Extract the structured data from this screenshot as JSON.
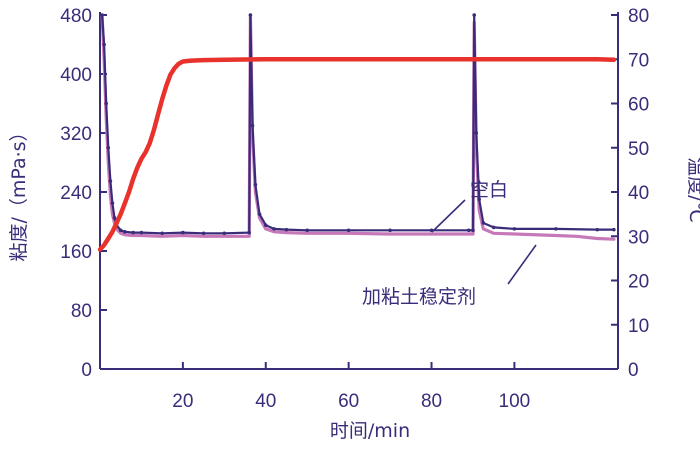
{
  "chart_data": {
    "type": "line",
    "xlabel": "时间/min",
    "ylabel_left": "粘度/（mPa·s）",
    "ylabel_right": "温度/℃",
    "x_ticks": [
      20,
      40,
      60,
      80,
      100
    ],
    "xlim": [
      0,
      125
    ],
    "left_ticks": [
      0,
      80,
      160,
      240,
      320,
      400,
      480
    ],
    "ylim_left": [
      0,
      480
    ],
    "right_ticks": [
      0,
      10,
      20,
      30,
      40,
      50,
      60,
      70,
      80
    ],
    "ylim_right": [
      0,
      80
    ],
    "colors": {
      "axis": "#3b2c7a",
      "temperature": "#e8322b",
      "blank": "#3b2c7a",
      "stabilizer": "#c678b8"
    },
    "series": [
      {
        "name": "空白",
        "axis": "left",
        "points": [
          [
            0.5,
            480
          ],
          [
            1,
            440
          ],
          [
            1.5,
            360
          ],
          [
            2,
            300
          ],
          [
            2.5,
            255
          ],
          [
            3,
            225
          ],
          [
            3.5,
            205
          ],
          [
            4,
            195
          ],
          [
            5,
            188
          ],
          [
            6,
            186
          ],
          [
            8,
            185
          ],
          [
            10,
            185
          ],
          [
            15,
            184
          ],
          [
            20,
            185
          ],
          [
            25,
            184
          ],
          [
            30,
            184
          ],
          [
            36,
            185
          ],
          [
            36.3,
            480
          ],
          [
            36.8,
            330
          ],
          [
            37.5,
            250
          ],
          [
            38.5,
            210
          ],
          [
            40,
            195
          ],
          [
            42,
            190
          ],
          [
            45,
            189
          ],
          [
            50,
            188
          ],
          [
            60,
            188
          ],
          [
            70,
            188
          ],
          [
            80,
            188
          ],
          [
            89,
            188
          ],
          [
            90,
            188
          ],
          [
            90.3,
            480
          ],
          [
            90.8,
            320
          ],
          [
            91.5,
            230
          ],
          [
            92.5,
            198
          ],
          [
            95,
            192
          ],
          [
            100,
            190
          ],
          [
            110,
            190
          ],
          [
            120,
            189
          ],
          [
            124,
            189
          ]
        ]
      },
      {
        "name": "加粘土稳定剂",
        "axis": "left",
        "points": [
          [
            0.5,
            480
          ],
          [
            1,
            420
          ],
          [
            1.5,
            340
          ],
          [
            2,
            280
          ],
          [
            2.5,
            235
          ],
          [
            3,
            210
          ],
          [
            3.5,
            198
          ],
          [
            4,
            190
          ],
          [
            5,
            184
          ],
          [
            6,
            182
          ],
          [
            8,
            181
          ],
          [
            10,
            181
          ],
          [
            15,
            180
          ],
          [
            20,
            181
          ],
          [
            25,
            180
          ],
          [
            30,
            180
          ],
          [
            36,
            180
          ],
          [
            36.3,
            480
          ],
          [
            36.8,
            320
          ],
          [
            37.5,
            240
          ],
          [
            38.5,
            205
          ],
          [
            40,
            190
          ],
          [
            42,
            186
          ],
          [
            45,
            185
          ],
          [
            50,
            184
          ],
          [
            60,
            184
          ],
          [
            70,
            183
          ],
          [
            80,
            183
          ],
          [
            89,
            183
          ],
          [
            90,
            183
          ],
          [
            90.3,
            470
          ],
          [
            90.8,
            300
          ],
          [
            91.5,
            215
          ],
          [
            92.5,
            190
          ],
          [
            95,
            184
          ],
          [
            100,
            183
          ],
          [
            110,
            181
          ],
          [
            115,
            180
          ],
          [
            120,
            177
          ],
          [
            124,
            176
          ]
        ]
      },
      {
        "name": "温度",
        "axis": "right",
        "points": [
          [
            0,
            27
          ],
          [
            1,
            28
          ],
          [
            2,
            29.5
          ],
          [
            3,
            31
          ],
          [
            4,
            33
          ],
          [
            5,
            35
          ],
          [
            6,
            37.5
          ],
          [
            7,
            40
          ],
          [
            8,
            43
          ],
          [
            9,
            45.5
          ],
          [
            10,
            47.5
          ],
          [
            11,
            49
          ],
          [
            12,
            51
          ],
          [
            13,
            54
          ],
          [
            14,
            57.5
          ],
          [
            15,
            61
          ],
          [
            16,
            64
          ],
          [
            17,
            66.5
          ],
          [
            18,
            68
          ],
          [
            19,
            69
          ],
          [
            20,
            69.5
          ],
          [
            22,
            69.7
          ],
          [
            25,
            69.8
          ],
          [
            30,
            69.9
          ],
          [
            40,
            70
          ],
          [
            60,
            70
          ],
          [
            80,
            70
          ],
          [
            100,
            70
          ],
          [
            120,
            70
          ],
          [
            124,
            69.9
          ]
        ]
      }
    ],
    "annotations": [
      {
        "text": "空白",
        "series": "空白",
        "point_x": 92,
        "point_y_left": 190
      },
      {
        "text": "加粘土稳定剂",
        "series": "加粘土稳定剂",
        "point_x": 114,
        "point_y_left": 180
      }
    ]
  }
}
